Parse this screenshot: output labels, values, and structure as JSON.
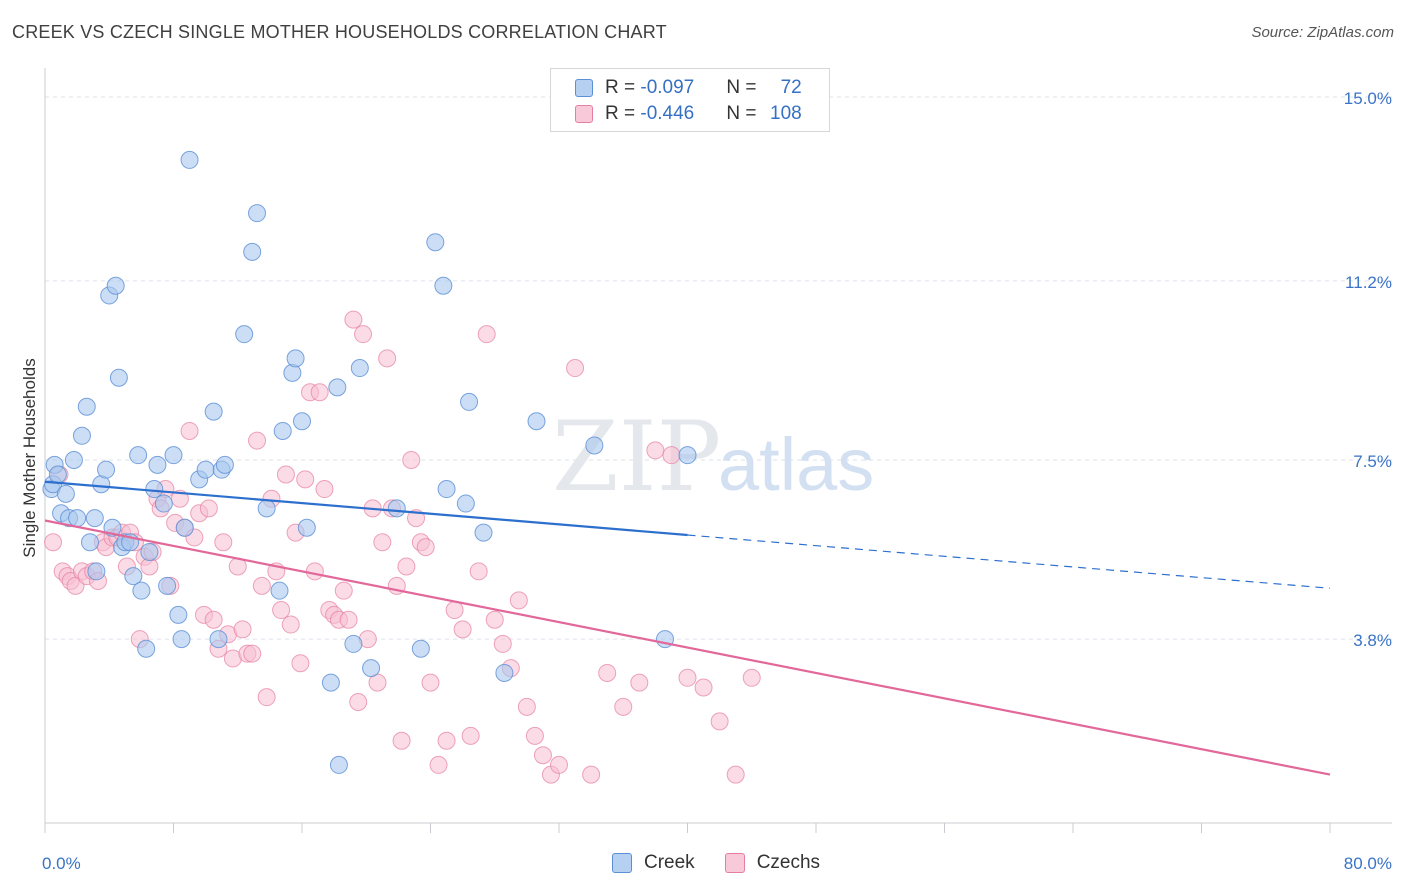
{
  "header": {
    "title": "CREEK VS CZECH SINGLE MOTHER HOUSEHOLDS CORRELATION CHART",
    "source": "Source: ZipAtlas.com"
  },
  "watermark": {
    "zip": "ZIP",
    "atlas": "atlas"
  },
  "legend": {
    "rows": [
      {
        "r_label": "R = ",
        "r_value": "-0.097",
        "n_label": "N = ",
        "n_value": "72",
        "color": "#9bbde9"
      },
      {
        "r_label": "R = ",
        "r_value": "-0.446",
        "n_label": "N = ",
        "n_value": "108",
        "color": "#f4adc4"
      }
    ]
  },
  "bottom_legend": [
    {
      "label": "Creek",
      "color": "#9bbde9"
    },
    {
      "label": "Czechs",
      "color": "#f4adc4"
    }
  ],
  "colors": {
    "creek_fill": "#a9c8ee",
    "creek_stroke": "#5b8fd6",
    "creek_line": "#2c6fce",
    "czech_fill": "#f7bfd1",
    "czech_stroke": "#e57fa0",
    "czech_line": "#e2689a",
    "axis_text": "#3a73c7",
    "grid": "#dde3ea"
  },
  "chart_data": {
    "type": "scatter",
    "title": "CREEK VS CZECH SINGLE MOTHER HOUSEHOLDS CORRELATION CHART",
    "xlabel": "",
    "ylabel": "Single Mother Households",
    "xlim": [
      0,
      80
    ],
    "ylim": [
      0,
      15.5
    ],
    "x_tick_labels": [
      "0.0%",
      "80.0%"
    ],
    "y_ticks": [
      3.8,
      7.5,
      11.2,
      15.0
    ],
    "y_tick_labels": [
      "3.8%",
      "7.5%",
      "11.2%",
      "15.0%"
    ],
    "series": [
      {
        "name": "Creek",
        "r": -0.097,
        "n": 72,
        "trend": {
          "x0": 0,
          "y0": 7.05,
          "x1": 40,
          "y1": 5.95,
          "dash_to_x": 80,
          "dash_to_y": 4.85
        },
        "points": [
          [
            0.4,
            6.9
          ],
          [
            0.5,
            7.0
          ],
          [
            0.6,
            7.4
          ],
          [
            0.8,
            7.2
          ],
          [
            1.0,
            6.4
          ],
          [
            1.3,
            6.8
          ],
          [
            1.5,
            6.3
          ],
          [
            1.8,
            7.5
          ],
          [
            2.0,
            6.3
          ],
          [
            2.3,
            8.0
          ],
          [
            2.6,
            8.6
          ],
          [
            2.8,
            5.8
          ],
          [
            3.1,
            6.3
          ],
          [
            3.2,
            5.2
          ],
          [
            3.5,
            7.0
          ],
          [
            3.8,
            7.3
          ],
          [
            4.0,
            10.9
          ],
          [
            4.2,
            6.1
          ],
          [
            4.4,
            11.1
          ],
          [
            4.6,
            9.2
          ],
          [
            4.8,
            5.7
          ],
          [
            5.0,
            5.8
          ],
          [
            5.3,
            5.8
          ],
          [
            5.5,
            5.1
          ],
          [
            5.8,
            7.6
          ],
          [
            6.0,
            4.8
          ],
          [
            6.3,
            3.6
          ],
          [
            6.5,
            5.6
          ],
          [
            6.8,
            6.9
          ],
          [
            7.0,
            7.4
          ],
          [
            7.4,
            6.6
          ],
          [
            7.6,
            4.9
          ],
          [
            8.0,
            7.6
          ],
          [
            8.3,
            4.3
          ],
          [
            8.5,
            3.8
          ],
          [
            8.7,
            6.1
          ],
          [
            9.0,
            13.7
          ],
          [
            9.6,
            7.1
          ],
          [
            10.0,
            7.3
          ],
          [
            10.5,
            8.5
          ],
          [
            10.8,
            3.8
          ],
          [
            11.0,
            7.3
          ],
          [
            11.2,
            7.4
          ],
          [
            12.4,
            10.1
          ],
          [
            12.9,
            11.8
          ],
          [
            13.2,
            12.6
          ],
          [
            13.8,
            6.5
          ],
          [
            14.6,
            4.8
          ],
          [
            14.8,
            8.1
          ],
          [
            15.4,
            9.3
          ],
          [
            15.6,
            9.6
          ],
          [
            16.0,
            8.3
          ],
          [
            16.3,
            6.1
          ],
          [
            17.8,
            2.9
          ],
          [
            18.2,
            9.0
          ],
          [
            18.3,
            1.2
          ],
          [
            19.2,
            3.7
          ],
          [
            19.6,
            9.4
          ],
          [
            20.3,
            3.2
          ],
          [
            21.9,
            6.5
          ],
          [
            23.4,
            3.6
          ],
          [
            24.3,
            12.0
          ],
          [
            24.8,
            11.1
          ],
          [
            25.0,
            6.9
          ],
          [
            26.2,
            6.6
          ],
          [
            26.4,
            8.7
          ],
          [
            27.3,
            6.0
          ],
          [
            28.6,
            3.1
          ],
          [
            30.6,
            8.3
          ],
          [
            34.2,
            7.8
          ],
          [
            40.0,
            7.6
          ],
          [
            38.6,
            3.8
          ]
        ]
      },
      {
        "name": "Czechs",
        "r": -0.446,
        "n": 108,
        "trend": {
          "x0": 0,
          "y0": 6.25,
          "x1": 80,
          "y1": 1.0
        },
        "points": [
          [
            0.5,
            5.8
          ],
          [
            0.9,
            7.2
          ],
          [
            1.1,
            5.2
          ],
          [
            1.4,
            5.1
          ],
          [
            1.6,
            5.0
          ],
          [
            1.9,
            4.9
          ],
          [
            2.3,
            5.2
          ],
          [
            2.6,
            5.1
          ],
          [
            3.0,
            5.2
          ],
          [
            3.3,
            5.0
          ],
          [
            3.6,
            5.8
          ],
          [
            3.8,
            5.7
          ],
          [
            4.2,
            5.9
          ],
          [
            4.5,
            5.9
          ],
          [
            4.8,
            6.0
          ],
          [
            5.1,
            5.3
          ],
          [
            5.3,
            6.0
          ],
          [
            5.6,
            5.8
          ],
          [
            5.9,
            3.8
          ],
          [
            6.2,
            5.5
          ],
          [
            6.5,
            5.3
          ],
          [
            6.7,
            5.6
          ],
          [
            7.0,
            6.7
          ],
          [
            7.2,
            6.5
          ],
          [
            7.5,
            6.9
          ],
          [
            7.8,
            4.9
          ],
          [
            8.1,
            6.2
          ],
          [
            8.4,
            6.7
          ],
          [
            8.7,
            6.1
          ],
          [
            9.0,
            8.1
          ],
          [
            9.3,
            5.9
          ],
          [
            9.6,
            6.4
          ],
          [
            9.9,
            4.3
          ],
          [
            10.2,
            6.5
          ],
          [
            10.5,
            4.2
          ],
          [
            10.8,
            3.6
          ],
          [
            11.1,
            5.8
          ],
          [
            11.4,
            3.9
          ],
          [
            11.7,
            3.4
          ],
          [
            12.0,
            5.3
          ],
          [
            12.3,
            4.0
          ],
          [
            12.6,
            3.5
          ],
          [
            12.9,
            3.5
          ],
          [
            13.2,
            7.9
          ],
          [
            13.5,
            4.9
          ],
          [
            13.8,
            2.6
          ],
          [
            14.1,
            6.7
          ],
          [
            14.4,
            5.2
          ],
          [
            14.7,
            4.4
          ],
          [
            15.0,
            7.2
          ],
          [
            15.3,
            4.1
          ],
          [
            15.6,
            6.0
          ],
          [
            15.9,
            3.3
          ],
          [
            16.2,
            7.1
          ],
          [
            16.5,
            8.9
          ],
          [
            16.8,
            5.2
          ],
          [
            17.1,
            8.9
          ],
          [
            17.4,
            6.9
          ],
          [
            17.7,
            4.4
          ],
          [
            18.0,
            4.3
          ],
          [
            18.3,
            4.2
          ],
          [
            18.6,
            4.8
          ],
          [
            18.9,
            4.2
          ],
          [
            19.2,
            10.4
          ],
          [
            19.5,
            2.5
          ],
          [
            19.8,
            10.1
          ],
          [
            20.1,
            3.8
          ],
          [
            20.4,
            6.5
          ],
          [
            20.7,
            2.9
          ],
          [
            21.0,
            5.8
          ],
          [
            21.3,
            9.6
          ],
          [
            21.6,
            6.5
          ],
          [
            21.9,
            4.9
          ],
          [
            22.2,
            1.7
          ],
          [
            22.5,
            5.3
          ],
          [
            22.8,
            7.5
          ],
          [
            23.1,
            6.3
          ],
          [
            23.4,
            5.8
          ],
          [
            23.7,
            5.7
          ],
          [
            24.0,
            2.9
          ],
          [
            24.5,
            1.2
          ],
          [
            25.0,
            1.7
          ],
          [
            25.5,
            4.4
          ],
          [
            26.0,
            4.0
          ],
          [
            26.5,
            1.8
          ],
          [
            27.0,
            5.2
          ],
          [
            27.5,
            10.1
          ],
          [
            28.0,
            4.2
          ],
          [
            28.5,
            3.7
          ],
          [
            29.0,
            3.2
          ],
          [
            29.5,
            4.6
          ],
          [
            30.0,
            2.4
          ],
          [
            30.5,
            1.8
          ],
          [
            31.0,
            1.4
          ],
          [
            31.5,
            1.0
          ],
          [
            32.0,
            1.2
          ],
          [
            33.0,
            9.4
          ],
          [
            34.0,
            1.0
          ],
          [
            35.0,
            3.1
          ],
          [
            36.0,
            2.4
          ],
          [
            37.0,
            2.9
          ],
          [
            38.0,
            7.7
          ],
          [
            39.0,
            7.6
          ],
          [
            40.0,
            3.0
          ],
          [
            41.0,
            2.8
          ],
          [
            42.0,
            2.1
          ],
          [
            43.0,
            1.0
          ],
          [
            44.0,
            3.0
          ]
        ]
      }
    ]
  }
}
